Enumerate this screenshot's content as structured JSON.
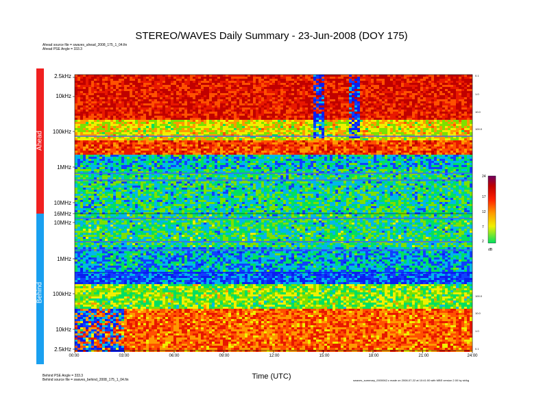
{
  "chart_data": {
    "type": "heatmap",
    "title": "STEREO/WAVES Daily Summary - 23-Jun-2008 (DOY 175)",
    "xlabel": "Time (UTC)",
    "x_ticks": [
      "00:00",
      "03:00",
      "06:00",
      "09:00",
      "12:00",
      "15:00",
      "18:00",
      "21:00",
      "24:00"
    ],
    "x_range_hours": [
      0,
      24
    ],
    "panels": [
      {
        "name": "Ahead",
        "y_ticks": [
          "2.5kHz",
          "10kHz",
          "100kHz",
          "1MHz",
          "10MHz",
          "16MHz"
        ],
        "right_ticks": [
          "0.1",
          "1.0",
          "10.0",
          "100.0"
        ],
        "source_file": "Ahead source file = swaves_ahead_2008_175_1_04.fin",
        "pse_angle": "Ahead PSE Angle = 333.3",
        "color": "#f02020"
      },
      {
        "name": "Behind",
        "y_ticks": [
          "10MHz",
          "1MHz",
          "100kHz",
          "10kHz",
          "2.5kHz"
        ],
        "right_ticks": [
          "100.0",
          "10.0",
          "1.0",
          "0.1"
        ],
        "source_file": "Behind source file = swaves_behind_2008_175_1_04.fin",
        "pse_angle": "Behind PSE Angle = 333.3",
        "color": "#1aa0f0"
      }
    ],
    "colorbar": {
      "unit": "dB",
      "ticks": [
        "24",
        "17",
        "12",
        "7",
        "2"
      ],
      "range": [
        2,
        24
      ],
      "colors": [
        "#00e060",
        "#f0f000",
        "#ff9900",
        "#ff2000",
        "#c00000",
        "#700060"
      ]
    },
    "footer_note": "swaves_summary_0000062.c made on 2008-07-22 at 10:41:00 with MBS version 2.00 by sb/kg"
  }
}
